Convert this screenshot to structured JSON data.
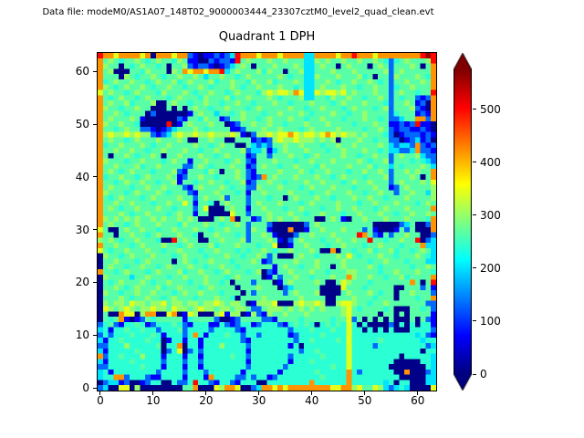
{
  "header": {
    "data_file_label": "Data file: modeM0/AS1A07_148T02_9000003444_23307cztM0_level2_quad_clean.evt"
  },
  "chart_data": {
    "type": "heatmap",
    "title": "Quadrant 1 DPH",
    "xlabel": "",
    "ylabel": "",
    "x_ticks": [
      0,
      10,
      20,
      30,
      40,
      50,
      60
    ],
    "y_ticks": [
      0,
      10,
      20,
      30,
      40,
      50,
      60
    ],
    "x_range": [
      -0.5,
      63.5
    ],
    "y_range": [
      -0.5,
      63.5
    ],
    "grid_size": 64,
    "grid": false,
    "colorbar": {
      "colormap": "jet",
      "ticks": [
        0,
        100,
        200,
        300,
        400,
        500
      ],
      "vmin": 0,
      "vmax": 575,
      "extend": "both"
    },
    "value_encoding": {
      "0": 5,
      "1": 70,
      "2": 130,
      "3": 200,
      "4": 240,
      "5": 265,
      "6": 300,
      "7": 345,
      "8": 420,
      "9": 500,
      "a": 560
    },
    "rows_top_to_bottom": [
      "98878888780888788210112123988878887888833888878898887888888889a9",
      "8565455654565546511002122195655565565553365655655655654245655569",
      "8655054565545055621221012356505556555653356550565550565255565058",
      "8560005546555065878878893565556465505563355565556555556256555558",
      "8555065455654556556535565545655555654553365556555645055265556548",
      "8456556554565564565556455655465564555653355654556556545255655658",
      "8654565565455655455654555654556555655453356555655455655245565558",
      "7565545655546555654556554565554676776873376776756555655256554559",
      "8545655456555456555465556455655565455563355465565545565254552128",
      "8565564555600565545565545565545556554555655545655565554255651208",
      "8655455655000505056554556555456555556554556555456555456255562108",
      "8556545550200000015655355456555455655565455565545565555245551218",
      "8565556510000002155465512556554565556554556555455565545223558828",
      "8655655400000901565556550125565565545556555655554555655112129110",
      "8554565522101235556545555112555655655545655556555545565212211210",
      "8676676766212367667667666761026676778767767876766565554201222121",
      "8565545655565556500556550055512126766766656560555655455220123120",
      "8455655565455655556554565500532325565565554556556555565323328212",
      "8556556554556555655455655556233513565556555455655565545332238221",
      "8505565455650556555655456555125525556554565555655455655256556322",
      "8655545565554565515565554565215556555455655565555654556255545432",
      "8556555645565555225654555655125655455655546555565556455354555653",
      "8565456555455562155546505565215555655565455655545565565255656558",
      "8455655456555651255655455565212856555655565545655545556255565058",
      "8554565565545561554556554556125565545556556555456556555256555657",
      "8565554556556555215655565455226555655545655565554555655125655556",
      "8655545655565455521555655545155655556555455655565545565525565536",
      "8545655545655556552565562555255545505655565545556556554555655556",
      "8556556555455655751554056555256555655545655556555455655565554565",
      "8565455655565545552570005655155655545565554556556555456555655558",
      "8555654556555456551550000755255565556554556555455655565545565565",
      "8656565655656556565000565805512565655655500565105565556555655548",
      "8565545655565554655565545565255520000002565555555555000002350028",
      "7500565565545565556554556555265510008001556555655525100015250008",
      "8550556554565556554055655545255651000255655565555985215255655002",
      "6565455655540095655005565556255565102565554556556559554556559023",
      "8556554565556554565556455565554557001556555455655545565554555833",
      "7545565556554556555455655545455654556555650080554556455645545653",
      "0655456555655545655545556554556525000565545556575455565545556543",
      "0556555456555505654556555455565125555655565555655554556555455533",
      "0565545565545655565545565545555551565545565505655556545555545565",
      "8554565554565556455655456555456021556555655455566555545565556554",
      "0655553556555455655565554565555015255655455565586556554556455558",
      "0545655565455655545565545055525550156555565005765554555555585059",
      "0556545655564556555456555505556555023555550000755545555500555251",
      "0655455655655545655655545550525555525655560000565556545505565552",
      "0555654556554565554555655405555655555565555005556555455505554558",
      "0656657665667566566566765665016667000676676006776554556555555522",
      "0765676566766576656766566566522566656565656555675455554500055452",
      "0500877068800780176000671660162165565556555555675555505505055551",
      "0545810125455555145555200125555221555545555545572505050500050521",
      "2452144541244454214441142124412444214545404545474040000204040441",
      "3414454454424445244442444421444444442444544454474404040400044442",
      "2424445444541444248414445442442444441244445444474444444444443421",
      "3144544445440144144144444442144444444244544445474444454444444344",
      "2244464444450448044144464444244444441404444444474444244444444423",
      "3144444544440247024244444444144444444424454444474444444444444044",
      "8244544464441444144144444544244444442444445444474444444440444443",
      "3144445444442444244244444444144444441444544444474444444400000443",
      "2244444454441444144144444444244444424444444454474444444000000043",
      "3414444444424444244424444441444444144444454444484244444400800023",
      "3448824442114444144418444422424412444444445444484444444440000033",
      "0233120012440042249442144214440044444444844444484444443404400033",
      "2300770600000000558000768870023887878888888877886755763234300007"
    ]
  }
}
